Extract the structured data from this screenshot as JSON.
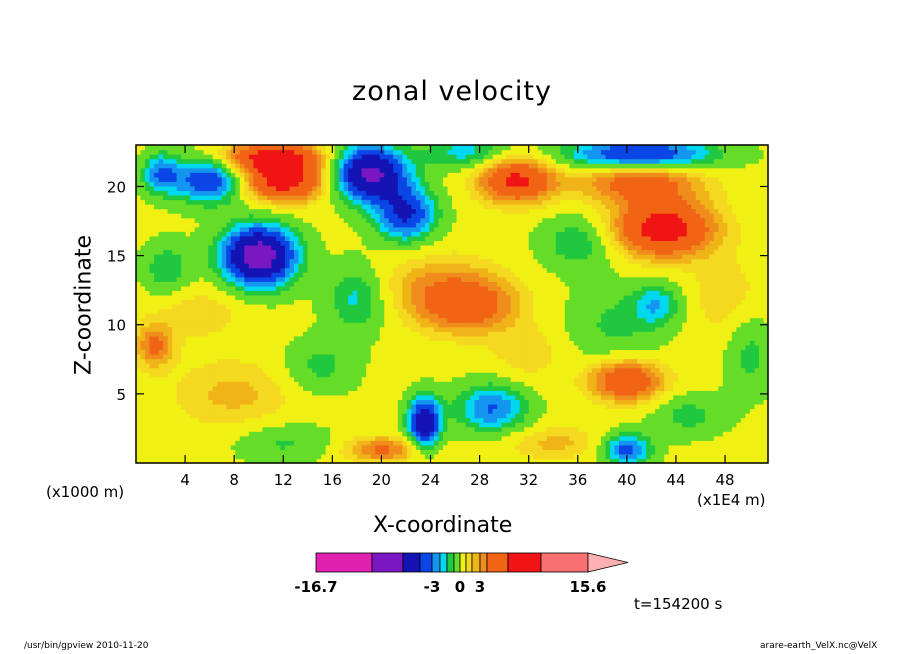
{
  "chart_data": {
    "type": "heatmap",
    "title": "zonal velocity",
    "xlabel": "X-coordinate",
    "ylabel": "Z-coordinate",
    "x_unit_left": "(x1000 m)",
    "x_unit_right": "(x1E4 m)",
    "xlim": [
      0,
      51.5
    ],
    "ylim": [
      0,
      23
    ],
    "x_ticks": [
      4,
      8,
      12,
      16,
      20,
      24,
      28,
      32,
      36,
      40,
      44,
      48
    ],
    "y_ticks": [
      5,
      10,
      15,
      20
    ],
    "time_label": "t=154200 s",
    "colorbar": {
      "labels": [
        "-16.7",
        "-3",
        "0",
        "3",
        "15.6"
      ],
      "label_values": [
        -16.7,
        -3,
        0,
        3,
        15.6
      ],
      "bin_edges": [
        -16.7,
        -12.1,
        -7.9,
        -5.4,
        -4,
        -3,
        -2.1,
        -1.2,
        0,
        1.2,
        2.1,
        3,
        4.1,
        6.8,
        10.3,
        15.6
      ],
      "colors": [
        "#e020b0",
        "#7a17c2",
        "#1414b4",
        "#0a46e6",
        "#1496f0",
        "#00d8f0",
        "#20c840",
        "#64dc28",
        "#f0f014",
        "#f5d820",
        "#f0b418",
        "#f08c1c",
        "#f06414",
        "#f01414",
        "#f87070",
        "#ffb0b0"
      ]
    },
    "field": {
      "base": 0.4,
      "components": [
        {
          "x": 6,
          "z": 20.5,
          "w": 3,
          "h": 1.7,
          "a": -6
        },
        {
          "x": 10,
          "z": 15,
          "w": 3,
          "h": 2.2,
          "a": -10
        },
        {
          "x": 12,
          "z": 20.5,
          "w": 3.5,
          "h": 1.5,
          "a": 8
        },
        {
          "x": 11,
          "z": 22.2,
          "w": 4,
          "h": 1,
          "a": 7
        },
        {
          "x": 2,
          "z": 21,
          "w": 1.5,
          "h": 1.5,
          "a": -4
        },
        {
          "x": 2.5,
          "z": 14,
          "w": 2,
          "h": 2,
          "a": -2.5
        },
        {
          "x": 1.5,
          "z": 8.5,
          "w": 1.5,
          "h": 1.5,
          "a": 4
        },
        {
          "x": 19,
          "z": 21,
          "w": 3,
          "h": 2,
          "a": -9
        },
        {
          "x": 22,
          "z": 18,
          "w": 2.5,
          "h": 2,
          "a": -6
        },
        {
          "x": 18,
          "z": 12,
          "w": 2.5,
          "h": 2.5,
          "a": -3
        },
        {
          "x": 27,
          "z": 11.5,
          "w": 4,
          "h": 2,
          "a": 5
        },
        {
          "x": 24,
          "z": 13,
          "w": 5,
          "h": 2.5,
          "a": 2
        },
        {
          "x": 29,
          "z": 4,
          "w": 3,
          "h": 1.8,
          "a": -4.5
        },
        {
          "x": 23.5,
          "z": 3,
          "w": 1.3,
          "h": 1.8,
          "a": -8
        },
        {
          "x": 20,
          "z": 1,
          "w": 3,
          "h": 0.9,
          "a": 4
        },
        {
          "x": 31,
          "z": 20.5,
          "w": 3,
          "h": 1.6,
          "a": 7
        },
        {
          "x": 27,
          "z": 22.5,
          "w": 3.5,
          "h": 1.2,
          "a": -3
        },
        {
          "x": 43,
          "z": 17,
          "w": 4,
          "h": 2,
          "a": 8
        },
        {
          "x": 41,
          "z": 20.5,
          "w": 5,
          "h": 1.6,
          "a": 5
        },
        {
          "x": 41,
          "z": 22.3,
          "w": 6,
          "h": 1.2,
          "a": -7
        },
        {
          "x": 36,
          "z": 16,
          "w": 3,
          "h": 2,
          "a": -2.5
        },
        {
          "x": 39,
          "z": 10,
          "w": 4,
          "h": 3,
          "a": -1.8
        },
        {
          "x": 42.5,
          "z": 11.5,
          "w": 2,
          "h": 1.5,
          "a": -3
        },
        {
          "x": 48,
          "z": 12,
          "w": 3,
          "h": 3,
          "a": 1.5
        },
        {
          "x": 40,
          "z": 6,
          "w": 3,
          "h": 1.5,
          "a": 6
        },
        {
          "x": 45,
          "z": 3.5,
          "w": 3,
          "h": 1.6,
          "a": -2
        },
        {
          "x": 40,
          "z": 1,
          "w": 2,
          "h": 1.2,
          "a": -5
        },
        {
          "x": 32,
          "z": 8,
          "w": 3,
          "h": 2,
          "a": 1.5
        },
        {
          "x": 8,
          "z": 5,
          "w": 5,
          "h": 2.5,
          "a": 2
        },
        {
          "x": 5,
          "z": 11,
          "w": 4,
          "h": 2,
          "a": 1.5
        },
        {
          "x": 15,
          "z": 7,
          "w": 3,
          "h": 2,
          "a": -2
        },
        {
          "x": 50,
          "z": 8,
          "w": 2,
          "h": 3,
          "a": -2
        },
        {
          "x": 34,
          "z": 1.5,
          "w": 4,
          "h": 1.2,
          "a": 2
        },
        {
          "x": 12,
          "z": 1.5,
          "w": 4,
          "h": 1.5,
          "a": -1.8
        }
      ]
    }
  },
  "footer": {
    "left": "/usr/bin/gpview   2010-11-20",
    "right": "arare-earth_VelX.nc@VelX"
  }
}
